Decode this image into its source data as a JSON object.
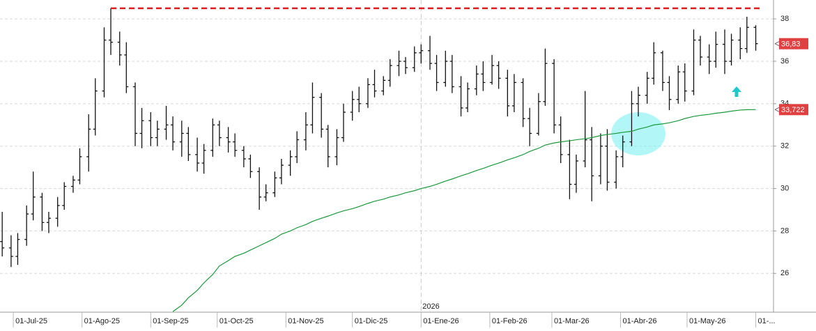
{
  "chart_data": {
    "type": "ohlc",
    "x": [
      "2025-06-26",
      "2025-06-30",
      "2025-07-03",
      "2025-07-07",
      "2025-07-10",
      "2025-07-14",
      "2025-07-17",
      "2025-07-21",
      "2025-07-24",
      "2025-07-28",
      "2025-07-31",
      "2025-08-04",
      "2025-08-07",
      "2025-08-11",
      "2025-08-14",
      "2025-08-18",
      "2025-08-21",
      "2025-08-25",
      "2025-08-28",
      "2025-09-01",
      "2025-09-04",
      "2025-09-08",
      "2025-09-11",
      "2025-09-15",
      "2025-09-18",
      "2025-09-22",
      "2025-09-25",
      "2025-09-29",
      "2025-10-02",
      "2025-10-06",
      "2025-10-09",
      "2025-10-13",
      "2025-10-16",
      "2025-10-20",
      "2025-10-23",
      "2025-10-27",
      "2025-10-30",
      "2025-11-03",
      "2025-11-06",
      "2025-11-10",
      "2025-11-13",
      "2025-11-17",
      "2025-11-20",
      "2025-11-24",
      "2025-11-27",
      "2025-12-01",
      "2025-12-04",
      "2025-12-08",
      "2025-12-11",
      "2025-12-15",
      "2025-12-18",
      "2025-12-22",
      "2025-12-25",
      "2025-12-29",
      "2026-01-01",
      "2026-01-05",
      "2026-01-08",
      "2026-01-12",
      "2026-01-15",
      "2026-01-19",
      "2026-01-22",
      "2026-01-26",
      "2026-01-29",
      "2026-02-02",
      "2026-02-05",
      "2026-02-09",
      "2026-02-12",
      "2026-02-16",
      "2026-02-19",
      "2026-02-23",
      "2026-02-26",
      "2026-03-02",
      "2026-03-05",
      "2026-03-09",
      "2026-03-12",
      "2026-03-16",
      "2026-03-19",
      "2026-03-23",
      "2026-03-26",
      "2026-03-30",
      "2026-04-02",
      "2026-04-06",
      "2026-04-09",
      "2026-04-13",
      "2026-04-16",
      "2026-04-20",
      "2026-04-23",
      "2026-04-27",
      "2026-04-30",
      "2026-05-04",
      "2026-05-07",
      "2026-05-11",
      "2026-05-14",
      "2026-05-18",
      "2026-05-21",
      "2026-05-25",
      "2026-05-28",
      "2026-06-01"
    ],
    "open": [
      27.5,
      27.2,
      26.8,
      27.6,
      28.8,
      29.6,
      28.4,
      28.6,
      29.2,
      30.1,
      30.4,
      31.5,
      32.8,
      34.6,
      37.0,
      36.9,
      36.3,
      34.8,
      32.6,
      33.2,
      32.4,
      32.8,
      33.0,
      32.2,
      32.6,
      31.6,
      31.2,
      31.8,
      33.0,
      32.4,
      32.2,
      31.8,
      31.4,
      30.8,
      29.6,
      29.8,
      30.5,
      31.1,
      31.5,
      32.3,
      33.0,
      34.3,
      32.8,
      31.5,
      32.4,
      33.6,
      34.2,
      34.0,
      34.9,
      34.6,
      35.1,
      35.8,
      36.0,
      35.7,
      36.4,
      36.5,
      35.9,
      35.0,
      36.0,
      34.8,
      33.8,
      34.7,
      35.4,
      35.0,
      35.8,
      35.2,
      33.9,
      35.0,
      33.3,
      32.6,
      34.1,
      35.9,
      33.0,
      31.6,
      30.2,
      31.3,
      32.3,
      30.6,
      32.0,
      30.3,
      31.5,
      32.2,
      34.0,
      34.4,
      35.2,
      36.4,
      35.0,
      34.2,
      35.5,
      34.6,
      37.0,
      36.2,
      36.0,
      36.8,
      36.0,
      37.0,
      36.6,
      37.6
    ],
    "high": [
      28.9,
      27.8,
      27.9,
      29.2,
      30.8,
      29.8,
      28.9,
      29.6,
      30.3,
      30.6,
      31.9,
      33.5,
      35.2,
      37.6,
      38.5,
      37.4,
      36.9,
      35.0,
      33.8,
      33.6,
      33.2,
      33.9,
      33.4,
      33.2,
      32.9,
      32.4,
      32.1,
      33.3,
      33.2,
      32.9,
      32.6,
      32.0,
      31.6,
      31.0,
      30.2,
      30.8,
      31.4,
      31.8,
      32.7,
      33.6,
      35.0,
      34.5,
      33.0,
      32.8,
      34.0,
      34.6,
      34.8,
      35.2,
      35.6,
      35.3,
      36.1,
      36.5,
      36.2,
      36.7,
      36.8,
      37.2,
      36.3,
      36.5,
      36.3,
      35.3,
      35.0,
      35.8,
      36.0,
      36.3,
      36.0,
      35.6,
      35.4,
      35.2,
      33.8,
      34.5,
      36.6,
      36.1,
      33.4,
      32.3,
      31.6,
      34.6,
      32.9,
      32.6,
      32.8,
      31.8,
      32.5,
      34.6,
      34.8,
      35.5,
      36.9,
      36.5,
      35.3,
      35.8,
      35.9,
      37.5,
      37.2,
      36.8,
      37.4,
      37.5,
      37.3,
      37.6,
      38.1,
      37.7
    ],
    "low": [
      26.8,
      26.3,
      26.4,
      27.3,
      28.5,
      28.0,
      27.9,
      28.2,
      29.0,
      29.8,
      30.2,
      30.8,
      32.5,
      34.3,
      36.3,
      35.8,
      34.5,
      32.0,
      31.9,
      32.0,
      32.0,
      32.3,
      31.8,
      31.5,
      31.3,
      30.8,
      30.7,
      31.5,
      32.0,
      31.7,
      31.5,
      31.0,
      30.5,
      29.0,
      29.4,
      29.6,
      30.2,
      30.6,
      31.2,
      31.8,
      32.6,
      32.4,
      31.0,
      31.1,
      32.2,
      33.2,
      33.6,
      33.8,
      34.3,
      34.4,
      34.8,
      35.3,
      35.4,
      35.5,
      35.9,
      35.6,
      34.6,
      34.8,
      34.5,
      33.4,
      33.6,
      34.4,
      34.6,
      34.9,
      34.7,
      33.4,
      33.6,
      32.9,
      32.0,
      32.5,
      33.9,
      32.6,
      31.2,
      29.5,
      29.8,
      31.0,
      29.4,
      30.2,
      29.9,
      30.0,
      31.0,
      32.0,
      33.4,
      34.0,
      34.9,
      34.6,
      33.7,
      34.0,
      34.1,
      34.4,
      35.8,
      35.4,
      35.7,
      35.4,
      35.8,
      36.1,
      36.4,
      36.5
    ],
    "close": [
      27.2,
      26.8,
      27.6,
      28.8,
      29.6,
      28.4,
      28.6,
      29.2,
      30.1,
      30.4,
      31.5,
      32.8,
      34.6,
      37.0,
      36.9,
      36.3,
      34.8,
      32.6,
      33.2,
      32.4,
      32.8,
      33.0,
      32.2,
      32.6,
      31.6,
      31.2,
      31.8,
      33.0,
      32.4,
      32.2,
      31.8,
      31.4,
      30.8,
      29.6,
      29.8,
      30.5,
      31.1,
      31.5,
      32.3,
      33.0,
      34.3,
      32.8,
      31.5,
      32.4,
      33.6,
      34.2,
      34.0,
      34.9,
      34.6,
      35.1,
      35.8,
      36.0,
      35.7,
      36.4,
      36.5,
      35.9,
      35.0,
      36.0,
      34.8,
      33.8,
      34.7,
      35.4,
      35.0,
      35.8,
      35.2,
      33.9,
      35.0,
      33.3,
      32.6,
      34.1,
      35.9,
      33.0,
      31.6,
      30.2,
      31.3,
      32.3,
      30.6,
      32.0,
      30.3,
      31.5,
      32.2,
      34.0,
      34.4,
      35.2,
      36.4,
      35.0,
      34.2,
      35.5,
      34.6,
      37.0,
      36.2,
      36.0,
      36.8,
      36.0,
      37.0,
      36.6,
      37.6,
      36.83
    ],
    "ma": [
      null,
      null,
      null,
      null,
      null,
      null,
      null,
      null,
      null,
      null,
      null,
      null,
      null,
      null,
      null,
      null,
      null,
      null,
      null,
      null,
      null,
      null,
      24.2,
      24.5,
      24.85,
      25.2,
      25.55,
      25.95,
      26.35,
      26.6,
      26.8,
      26.95,
      27.1,
      27.3,
      27.45,
      27.65,
      27.85,
      28.0,
      28.15,
      28.3,
      28.45,
      28.6,
      28.7,
      28.85,
      28.95,
      29.05,
      29.15,
      29.3,
      29.4,
      29.5,
      29.6,
      29.7,
      29.8,
      29.9,
      30.0,
      30.1,
      30.2,
      30.35,
      30.45,
      30.6,
      30.7,
      30.85,
      30.95,
      31.1,
      31.2,
      31.35,
      31.45,
      31.6,
      31.75,
      31.9,
      32.05,
      32.15,
      32.2,
      32.25,
      32.3,
      32.35,
      32.4,
      32.5,
      32.55,
      32.6,
      32.65,
      32.7,
      32.8,
      32.9,
      33.0,
      33.05,
      33.1,
      33.2,
      33.3,
      33.4,
      33.45,
      33.5,
      33.55,
      33.6,
      33.65,
      33.7,
      33.72,
      33.722
    ],
    "bar_color": "#111111",
    "ma_color": "#1a9a3a",
    "xlim": [
      "2025-06-25",
      "2026-06-09"
    ],
    "ylim": [
      24.17,
      38.89
    ],
    "yticks": [
      26,
      28,
      30,
      32,
      34,
      36,
      38
    ],
    "grid": true,
    "xticks": [
      {
        "value": "2025-07-01",
        "label": "01-Jul-25"
      },
      {
        "value": "2025-08-01",
        "label": "01-Ago-25"
      },
      {
        "value": "2025-09-01",
        "label": "01-Sep-25"
      },
      {
        "value": "2025-10-01",
        "label": "01-Oct-25"
      },
      {
        "value": "2025-11-01",
        "label": "01-Nov-25"
      },
      {
        "value": "2025-12-01",
        "label": "01-Dic-25"
      },
      {
        "value": "2026-01-01",
        "label": "01-Ene-26"
      },
      {
        "value": "2026-02-01",
        "label": "01-Feb-26"
      },
      {
        "value": "2026-03-01",
        "label": "01-Mar-26"
      },
      {
        "value": "2026-04-01",
        "label": "01-Abr-26"
      },
      {
        "value": "2026-05-01",
        "label": "01-May-26"
      },
      {
        "value": "2026-06-01",
        "label": "01-..."
      }
    ],
    "year_marker": {
      "value": "2026-01-01",
      "label": "2026"
    },
    "resistance": {
      "value": 38.5,
      "start": "2025-08-14",
      "end": "2026-06-03",
      "color": "#e01b1b"
    },
    "price_tags": [
      {
        "value": 36.83,
        "label": "36,83"
      },
      {
        "value": 33.722,
        "label": "33,722"
      }
    ],
    "tag_color": "#e04040"
  }
}
